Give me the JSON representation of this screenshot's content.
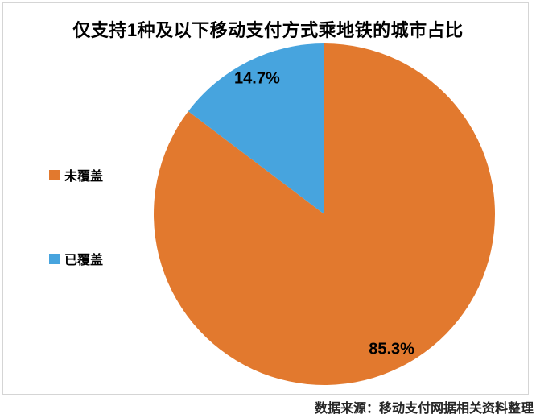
{
  "title": "仅支持1种及以下移动支付方式乘地铁的城市占比",
  "source_note": "数据来源：移动支付网据相关资料整理",
  "legend": {
    "position": "left",
    "items": [
      {
        "label": "未覆盖",
        "color": "#e2792e"
      },
      {
        "label": "已覆盖",
        "color": "#47a4de"
      }
    ]
  },
  "chart_data": {
    "type": "pie",
    "title": "仅支持1种及以下移动支付方式乘地铁的城市占比",
    "categories": [
      "未覆盖",
      "已覆盖"
    ],
    "values": [
      85.3,
      14.7
    ],
    "data_labels": [
      "85.3%",
      "14.7%"
    ],
    "colors": [
      "#e2792e",
      "#47a4de"
    ],
    "start_angle_deg": 0,
    "direction": "clockwise",
    "legend_position": "left",
    "source": "数据来源：移动支付网据相关资料整理"
  },
  "colors": {
    "background": "#ffffff",
    "frame_border": "#d5d5d5",
    "title_text": "#000000",
    "label_text": "#000000",
    "source_text": "#262626",
    "orange": "#e2792e",
    "blue": "#47a4de"
  }
}
